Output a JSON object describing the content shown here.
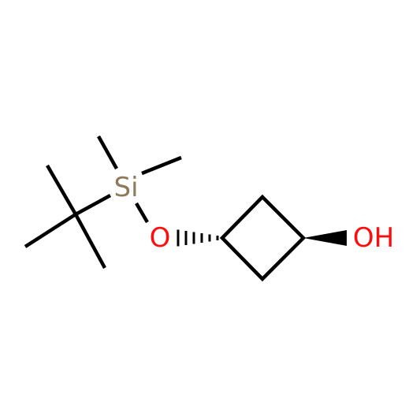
{
  "atoms": [
    {
      "label": "Si"
    },
    {
      "label": "O"
    },
    {
      "label": "OH"
    }
  ]
}
